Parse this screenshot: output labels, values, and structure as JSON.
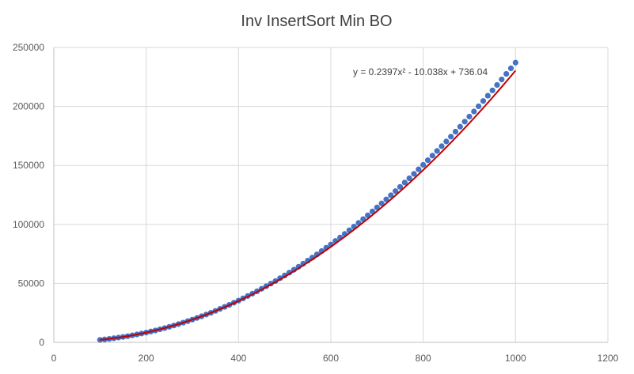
{
  "chart_data": {
    "type": "scatter",
    "title": "Inv InsertSort Min BO",
    "xlabel": "",
    "ylabel": "",
    "xlim": [
      0,
      1200
    ],
    "ylim": [
      0,
      250000
    ],
    "x_ticks": [
      "0",
      "200",
      "400",
      "600",
      "800",
      "1000",
      "1200"
    ],
    "y_ticks": [
      "0",
      "50000",
      "100000",
      "150000",
      "200000",
      "250000"
    ],
    "grid": true,
    "legend": "none",
    "series": [
      {
        "x": [
          100,
          110,
          120,
          130,
          140,
          150,
          160,
          170,
          180,
          190,
          200,
          210,
          220,
          230,
          240,
          250,
          260,
          270,
          280,
          290,
          300,
          310,
          320,
          330,
          340,
          350,
          360,
          370,
          380,
          390,
          400,
          410,
          420,
          430,
          440,
          450,
          460,
          470,
          480,
          490,
          500,
          510,
          520,
          530,
          540,
          550,
          560,
          570,
          580,
          590,
          600,
          610,
          620,
          630,
          640,
          650,
          660,
          670,
          680,
          690,
          700,
          710,
          720,
          730,
          740,
          750,
          760,
          770,
          780,
          790,
          800,
          810,
          820,
          830,
          840,
          850,
          860,
          870,
          880,
          890,
          900,
          910,
          920,
          930,
          940,
          950,
          960,
          970,
          980,
          990,
          1000
        ],
        "y": [
          2150,
          2500,
          2970,
          3500,
          4050,
          4630,
          5250,
          5960,
          6700,
          7500,
          8300,
          9200,
          10100,
          11100,
          12100,
          13200,
          14300,
          15500,
          16700,
          18000,
          19300,
          20700,
          22100,
          23600,
          25100,
          26700,
          28400,
          30100,
          31800,
          33600,
          35400,
          37300,
          39300,
          41300,
          43300,
          45400,
          47600,
          49800,
          52000,
          54400,
          56700,
          59100,
          61600,
          64100,
          66700,
          69300,
          71900,
          74600,
          77400,
          80200,
          83000,
          86000,
          88900,
          91900,
          95000,
          98100,
          101300,
          104500,
          107700,
          111000,
          114400,
          117800,
          121200,
          124700,
          128200,
          131800,
          135500,
          139100,
          142900,
          146700,
          150500,
          154400,
          158300,
          162300,
          166300,
          170300,
          174400,
          178600,
          182800,
          187100,
          191400,
          195700,
          200100,
          204600,
          209100,
          213600,
          218200,
          222900,
          227600,
          232300,
          237100
        ]
      }
    ],
    "trendline": {
      "type": "polynomial",
      "order": 2,
      "coefficients": [
        0.2397,
        -10.038,
        736.04
      ],
      "equation_label": "y = 0.2397x² - 10.038x + 736.04"
    },
    "colors": {
      "marker": "#4472c4",
      "trendline": "#c00000",
      "grid": "#d9d9d9"
    }
  }
}
